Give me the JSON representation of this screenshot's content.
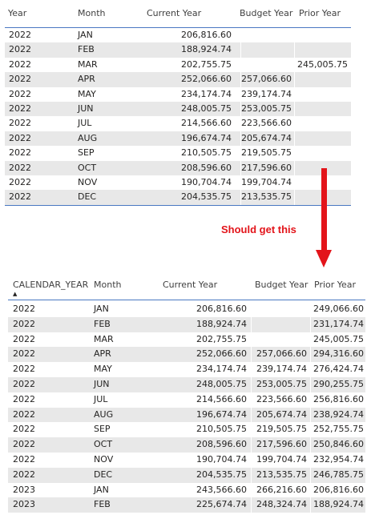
{
  "top_table": {
    "columns": [
      "Year",
      "Month",
      "Current Year",
      "Budget Year",
      "Prior Year"
    ],
    "rows": [
      [
        "2022",
        "JAN",
        "206,816.60",
        "",
        ""
      ],
      [
        "2022",
        "FEB",
        "188,924.74",
        "",
        ""
      ],
      [
        "2022",
        "MAR",
        "202,755.75",
        "",
        "245,005.75"
      ],
      [
        "2022",
        "APR",
        "252,066.60",
        "257,066.60",
        ""
      ],
      [
        "2022",
        "MAY",
        "234,174.74",
        "239,174.74",
        ""
      ],
      [
        "2022",
        "JUN",
        "248,005.75",
        "253,005.75",
        ""
      ],
      [
        "2022",
        "JUL",
        "214,566.60",
        "223,566.60",
        ""
      ],
      [
        "2022",
        "AUG",
        "196,674.74",
        "205,674.74",
        ""
      ],
      [
        "2022",
        "SEP",
        "210,505.75",
        "219,505.75",
        ""
      ],
      [
        "2022",
        "OCT",
        "208,596.60",
        "217,596.60",
        ""
      ],
      [
        "2022",
        "NOV",
        "190,704.74",
        "199,704.74",
        ""
      ],
      [
        "2022",
        "DEC",
        "204,535.75",
        "213,535.75",
        ""
      ]
    ]
  },
  "annotation": {
    "text": "Should get this",
    "color": "#e3141a"
  },
  "bottom_table": {
    "columns": [
      "CALENDAR_YEAR",
      "Month",
      "Current Year",
      "Budget Year",
      "Prior Year"
    ],
    "sort_indicator": "▲",
    "rows": [
      [
        "2022",
        "JAN",
        "206,816.60",
        "",
        "249,066.60"
      ],
      [
        "2022",
        "FEB",
        "188,924.74",
        "",
        "231,174.74"
      ],
      [
        "2022",
        "MAR",
        "202,755.75",
        "",
        "245,005.75"
      ],
      [
        "2022",
        "APR",
        "252,066.60",
        "257,066.60",
        "294,316.60"
      ],
      [
        "2022",
        "MAY",
        "234,174.74",
        "239,174.74",
        "276,424.74"
      ],
      [
        "2022",
        "JUN",
        "248,005.75",
        "253,005.75",
        "290,255.75"
      ],
      [
        "2022",
        "JUL",
        "214,566.60",
        "223,566.60",
        "256,816.60"
      ],
      [
        "2022",
        "AUG",
        "196,674.74",
        "205,674.74",
        "238,924.74"
      ],
      [
        "2022",
        "SEP",
        "210,505.75",
        "219,505.75",
        "252,755.75"
      ],
      [
        "2022",
        "OCT",
        "208,596.60",
        "217,596.60",
        "250,846.60"
      ],
      [
        "2022",
        "NOV",
        "190,704.74",
        "199,704.74",
        "232,954.74"
      ],
      [
        "2022",
        "DEC",
        "204,535.75",
        "213,535.75",
        "246,785.75"
      ],
      [
        "2023",
        "JAN",
        "243,566.60",
        "266,216.60",
        "206,816.60"
      ],
      [
        "2023",
        "FEB",
        "225,674.74",
        "248,324.74",
        "188,924.74"
      ]
    ]
  },
  "colors": {
    "row_shade": "#e8e8e8",
    "header_rule": "#4a78c2",
    "arrow": "#e3141a"
  }
}
